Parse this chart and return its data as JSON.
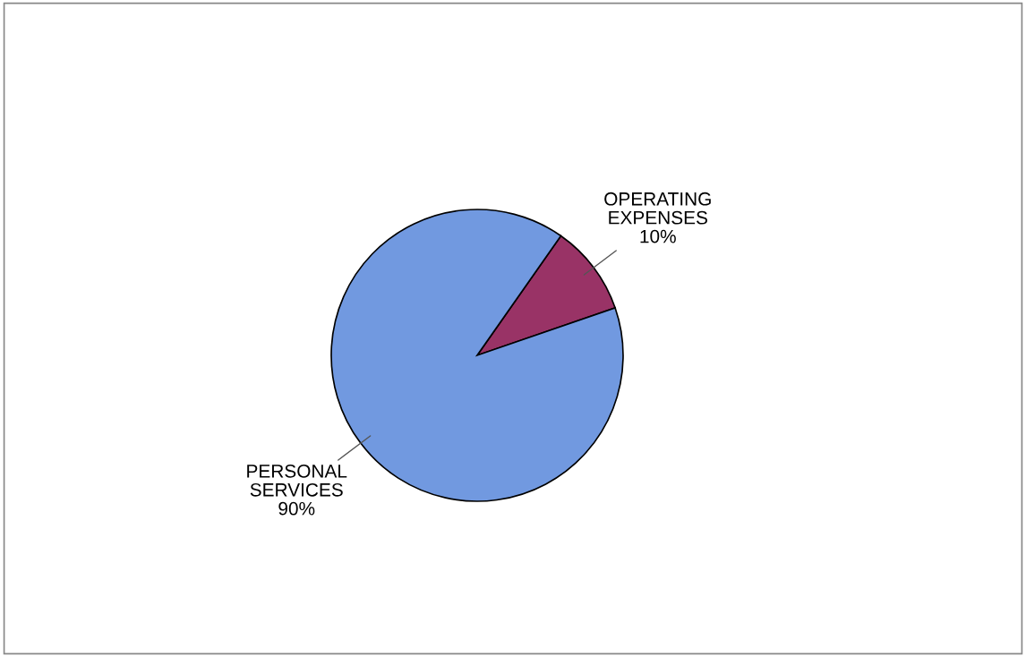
{
  "chart_data": {
    "type": "pie",
    "categories": [
      "OPERATING EXPENSES",
      "PERSONAL SERVICES"
    ],
    "values": [
      10,
      90
    ],
    "value_labels": [
      "10%",
      "90%"
    ],
    "colors": [
      "#993366",
      "#7199e0"
    ]
  }
}
